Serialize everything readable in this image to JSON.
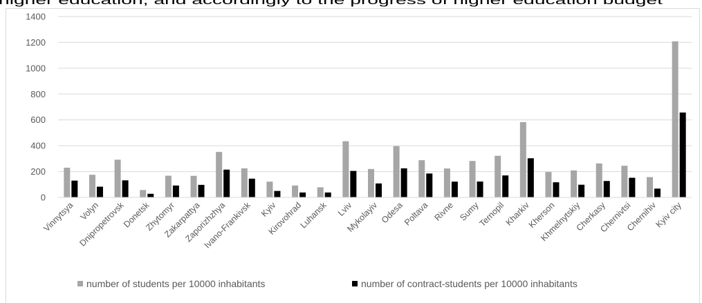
{
  "header": {
    "clipped_title": "higher education, and accordingly to the progress of higher education budget"
  },
  "colors": {
    "series_1": "#a6a6a6",
    "series_2": "#000000",
    "gridline": "#d9d9d9",
    "axis_text": "#595959"
  },
  "chart_data": {
    "type": "bar",
    "title": "",
    "xlabel": "",
    "ylabel": "",
    "ylim": [
      0,
      1400
    ],
    "yticks": [
      0,
      200,
      400,
      600,
      800,
      1000,
      1200,
      1400
    ],
    "grid": true,
    "legend_position": "bottom",
    "categories": [
      "Vinnytsya",
      "Volyn",
      "Dnipropetrovsk",
      "Donetsk",
      "Zhytomyr",
      "Zakarpattya",
      "Zaporizhzhya",
      "Ivano-Frankivsk",
      "Kyiv",
      "Kirovohrad",
      "Luhansk",
      "Lviv",
      "Mykolayiv",
      "Odesa",
      "Poltava",
      "Rivne",
      "Sumy",
      "Ternopil",
      "Kharkiv",
      "Kherson",
      "Khmelnytskiy",
      "Cherkasy",
      "Chernivtsi",
      "Chernihiv",
      "Kyiv city"
    ],
    "series": [
      {
        "name": "number of students per 10000 inhabitants",
        "values": [
          230,
          175,
          292,
          57,
          168,
          167,
          352,
          225,
          122,
          92,
          78,
          435,
          220,
          397,
          288,
          224,
          282,
          322,
          583,
          197,
          209,
          263,
          245,
          157,
          1208
        ]
      },
      {
        "name": "number of contract-students per 10000 inhabitants",
        "values": [
          130,
          83,
          132,
          28,
          92,
          97,
          215,
          145,
          50,
          38,
          38,
          205,
          108,
          225,
          185,
          122,
          123,
          170,
          303,
          117,
          98,
          127,
          152,
          68,
          657
        ]
      }
    ]
  }
}
